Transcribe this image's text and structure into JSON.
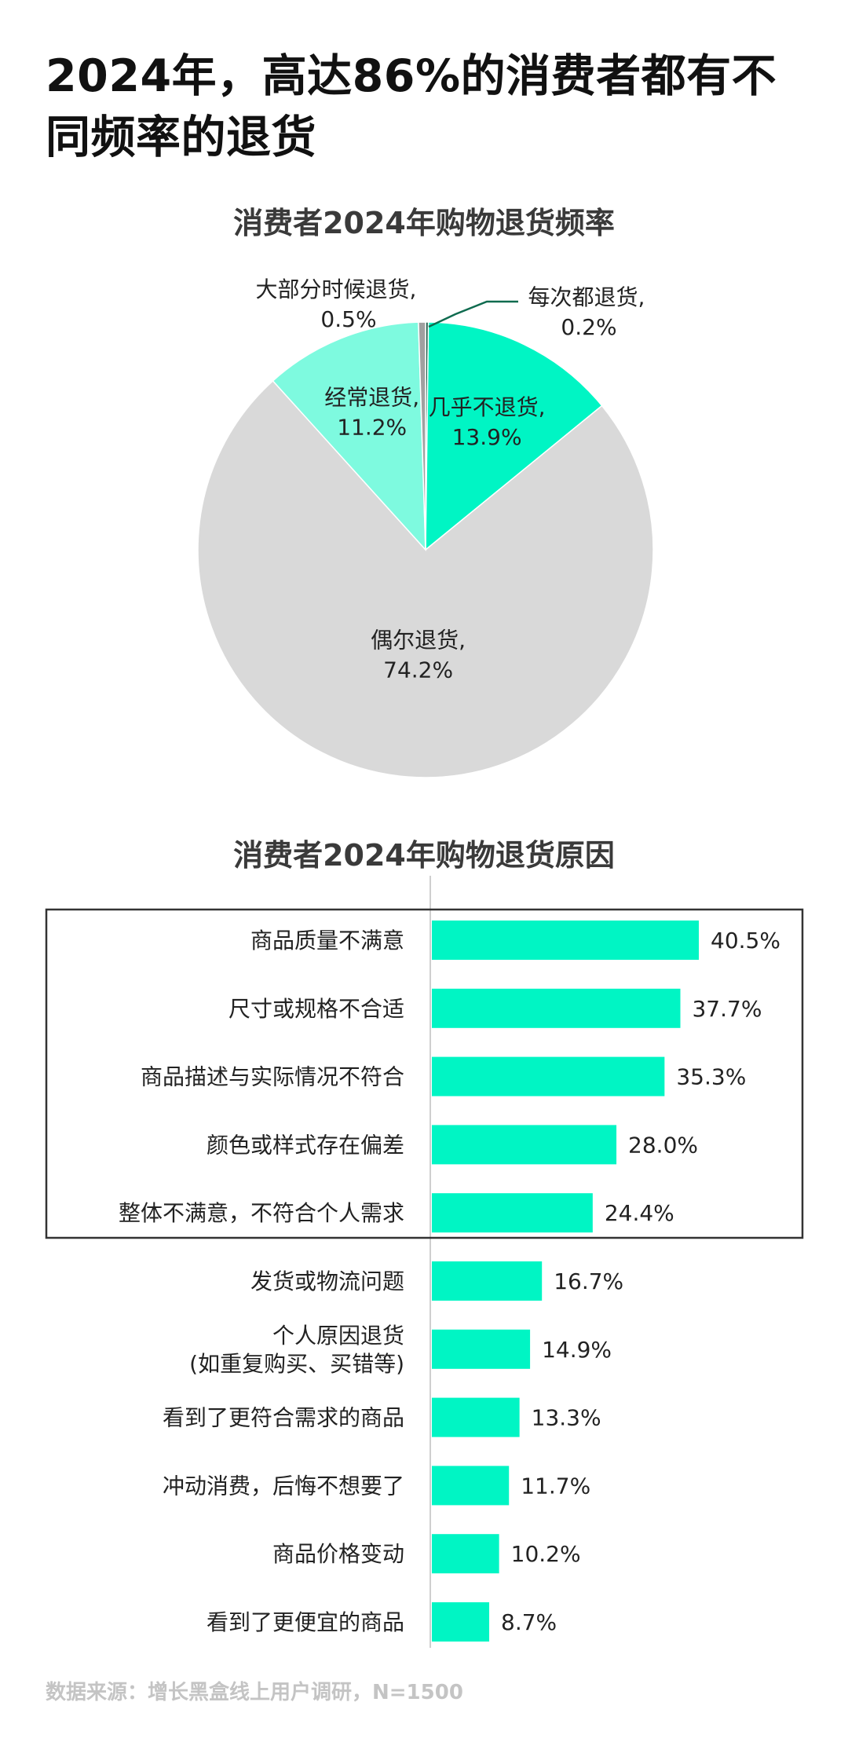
{
  "title": "2024年，高达86%的消费者都有不同频率的退货",
  "colors": {
    "accent": "#00f5c4",
    "light_accent": "#7efadf",
    "gray": "#d9d9d9",
    "dark_gray": "#9a9a9a",
    "leader": "#0f6b4f"
  },
  "chart_data": [
    {
      "type": "pie",
      "title": "消费者2024年购物退货频率",
      "slices": [
        {
          "label": "每次都退货,",
          "value": 0.2,
          "value_text": "0.2%",
          "color": "#1a5c47"
        },
        {
          "label": "几乎不退货,",
          "value": 13.9,
          "value_text": "13.9%",
          "color": "#00f5c4"
        },
        {
          "label": "偶尔退货,",
          "value": 74.2,
          "value_text": "74.2%",
          "color": "#d9d9d9"
        },
        {
          "label": "经常退货,",
          "value": 11.2,
          "value_text": "11.2%",
          "color": "#7efadf"
        },
        {
          "label": "大部分时候退货,",
          "value": 0.5,
          "value_text": "0.5%",
          "color": "#a0a0a0"
        }
      ]
    },
    {
      "type": "bar",
      "orientation": "horizontal",
      "title": "消费者2024年购物退货原因",
      "categories": [
        "商品质量不满意",
        "尺寸或规格不合适",
        "商品描述与实际情况不符合",
        "颜色或样式存在偏差",
        "整体不满意，不符合个人需求",
        "发货或物流问题",
        "个人原因退货\n(如重复购买、买错等)",
        "看到了更符合需求的商品",
        "冲动消费，后悔不想要了",
        "商品价格变动",
        "看到了更便宜的商品"
      ],
      "values": [
        40.5,
        37.7,
        35.3,
        28.0,
        24.4,
        16.7,
        14.9,
        13.3,
        11.7,
        10.2,
        8.7
      ],
      "value_labels": [
        "40.5%",
        "37.7%",
        "35.3%",
        "28.0%",
        "24.4%",
        "16.7%",
        "14.9%",
        "13.3%",
        "11.7%",
        "10.2%",
        "8.7%"
      ],
      "highlight_box": "first 5 categories"
    }
  ],
  "source": "数据来源：增长黑盒线上用户调研，N=1500"
}
